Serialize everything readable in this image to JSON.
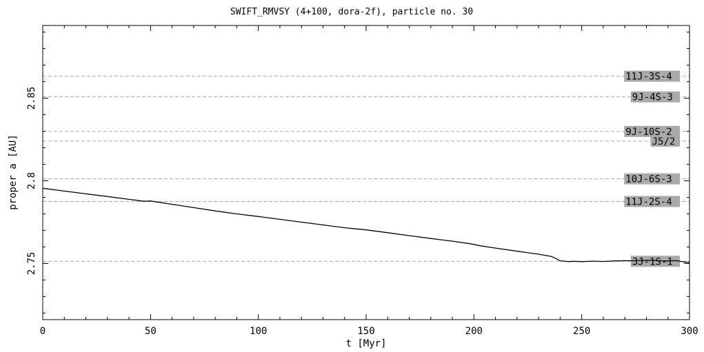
{
  "chart_data": {
    "type": "line",
    "title": "SWIFT_RMVSY (4+100, dora-2f), particle no. 30",
    "xlabel": "t [Myr]",
    "ylabel": "proper a [AU]",
    "xlim": [
      0,
      300
    ],
    "ylim": [
      2.716,
      2.894
    ],
    "xticks": [
      0,
      50,
      100,
      150,
      200,
      250,
      300
    ],
    "xtick_labels": [
      "0",
      "50",
      "100",
      "150",
      "200",
      "250",
      "300"
    ],
    "yticks": [
      2.75,
      2.8,
      2.85
    ],
    "ytick_labels": [
      "2.75",
      "2.8",
      "2.85"
    ],
    "grid": false,
    "series": [
      {
        "values_x": [
          0,
          10,
          20,
          30,
          40,
          47,
          50,
          53,
          60,
          70,
          80,
          90,
          100,
          110,
          120,
          130,
          140,
          150,
          160,
          170,
          180,
          190,
          198,
          203,
          210,
          220,
          230,
          236,
          238,
          240,
          242,
          244,
          246,
          250,
          255,
          260,
          265,
          270,
          275,
          280,
          285,
          290,
          294,
          297,
          300
        ],
        "values_y": [
          2.7955,
          2.7938,
          2.7921,
          2.7905,
          2.7888,
          2.7876,
          2.7878,
          2.7872,
          2.7858,
          2.7838,
          2.7818,
          2.78,
          2.7784,
          2.7767,
          2.775,
          2.7733,
          2.7716,
          2.7703,
          2.7686,
          2.7668,
          2.7651,
          2.7635,
          2.762,
          2.7607,
          2.7593,
          2.7574,
          2.7556,
          2.7542,
          2.753,
          2.7516,
          2.7514,
          2.7511,
          2.7513,
          2.7511,
          2.7514,
          2.7512,
          2.7515,
          2.7517,
          2.7516,
          2.7519,
          2.7517,
          2.7515,
          2.7517,
          2.751,
          2.7505
        ]
      }
    ],
    "resonances": [
      {
        "label": "11J-3S-4",
        "a": 2.8633
      },
      {
        "label": "9J-4S-3",
        "a": 2.8508
      },
      {
        "label": "9J-10S-2",
        "a": 2.8299
      },
      {
        "label": "J5/2",
        "a": 2.824
      },
      {
        "label": "10J-6S-3",
        "a": 2.8012
      },
      {
        "label": "11J-2S-4",
        "a": 2.7875
      },
      {
        "label": "3J-1S-1",
        "a": 2.7513
      }
    ],
    "colors": {
      "line": "#000000",
      "resonance_line": "#a8a8a8",
      "label_box": "#a9a9a9"
    }
  }
}
